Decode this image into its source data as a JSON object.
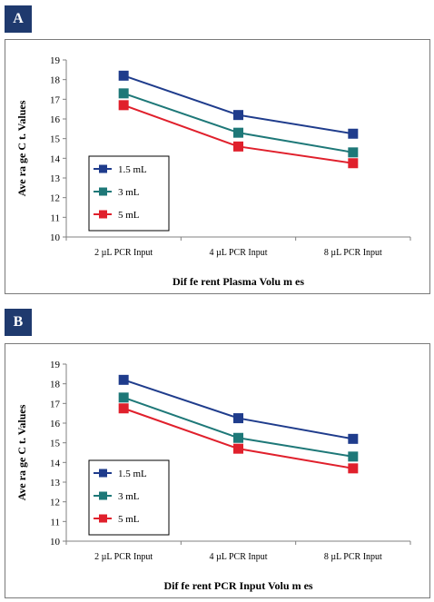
{
  "panels": [
    {
      "label": "A",
      "chart_data": {
        "type": "line",
        "categories": [
          "2 µL PCR Input",
          "4 µL PCR Input",
          "8 µL PCR Input"
        ],
        "series": [
          {
            "name": "1.5 mL",
            "values": [
              18.2,
              16.2,
              15.25
            ],
            "color": "#1f3c8c",
            "marker": "square"
          },
          {
            "name": "3 mL",
            "values": [
              17.3,
              15.3,
              14.3
            ],
            "color": "#1e7878",
            "marker": "square"
          },
          {
            "name": "5 mL",
            "values": [
              16.7,
              14.6,
              13.75
            ],
            "color": "#e0202c",
            "marker": "square"
          }
        ],
        "xlabel": "Dif fe rent Plasma     Volu m es",
        "ylabel": "Ave ra ge C t. Values",
        "ylim": [
          10,
          19
        ],
        "yticks": [
          10,
          11,
          12,
          13,
          14,
          15,
          16,
          17,
          18,
          19
        ],
        "grid": false,
        "legend": "left-bottom"
      }
    },
    {
      "label": "B",
      "chart_data": {
        "type": "line",
        "categories": [
          "2 µL PCR Input",
          "4 µL PCR Input",
          "8 µL PCR Input"
        ],
        "series": [
          {
            "name": "1.5 mL",
            "values": [
              18.2,
              16.25,
              15.2
            ],
            "color": "#1f3c8c",
            "marker": "square"
          },
          {
            "name": "3 mL",
            "values": [
              17.3,
              15.25,
              14.3
            ],
            "color": "#1e7878",
            "marker": "square"
          },
          {
            "name": "5 mL",
            "values": [
              16.75,
              14.7,
              13.7
            ],
            "color": "#e0202c",
            "marker": "square"
          }
        ],
        "xlabel": "Dif fe rent PCR Input     Volu m es",
        "ylabel": "Ave ra ge C t. Values",
        "ylim": [
          10,
          19
        ],
        "yticks": [
          10,
          11,
          12,
          13,
          14,
          15,
          16,
          17,
          18,
          19
        ],
        "grid": false,
        "legend": "left-bottom"
      }
    }
  ]
}
